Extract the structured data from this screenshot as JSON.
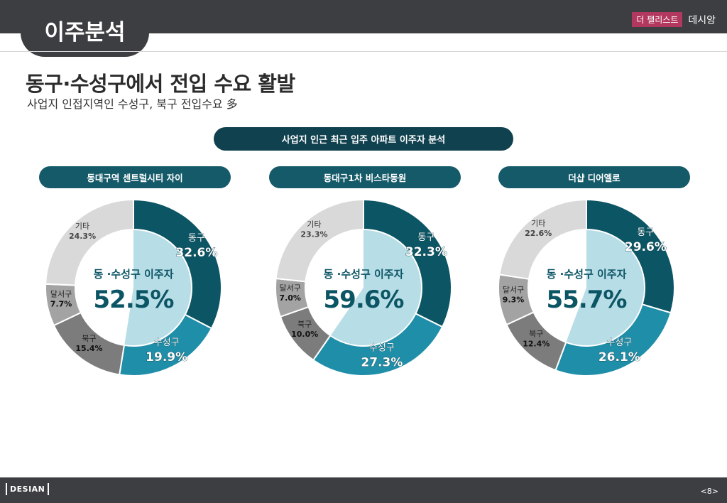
{
  "header": {
    "tab_title": "이주분석",
    "brand_badge": "더 팰리스트",
    "brand_name": "데시앙"
  },
  "headline": "동구·수성구에서 전입 수요 활발",
  "subline": "사업지 인접지역인 수성구, 북구 전입수요 多",
  "section_title": "사업지 인근 최근 입주 아파트 이주자 분석",
  "center_label": "동 ·수성구 이주자",
  "colors": {
    "dong": "#0c5565",
    "suseong": "#1f8ea8",
    "buk": "#7c7c7c",
    "dalseo": "#a3a3a3",
    "other": "#d9d9d9",
    "inner_highlight": "#b7dde6",
    "center_text": "#0c5565"
  },
  "footer": {
    "logo": "DESIAN",
    "page": "<8>"
  },
  "chart_data": [
    {
      "type": "pie",
      "title": "동대구역 센트럴시티 자이",
      "center_value": "52.5%",
      "highlight_share": 52.5,
      "labels": [
        "동구",
        "수성구",
        "북구",
        "달서구",
        "기타"
      ],
      "values": [
        32.6,
        19.9,
        15.4,
        7.7,
        24.3
      ],
      "value_labels": [
        "32.6%",
        "19.9%",
        "15.4%",
        "7.7%",
        "24.3%"
      ]
    },
    {
      "type": "pie",
      "title": "동대구1차 비스타동원",
      "center_value": "59.6%",
      "highlight_share": 59.6,
      "labels": [
        "동구",
        "수성구",
        "북구",
        "달서구",
        "기타"
      ],
      "values": [
        32.3,
        27.3,
        10.0,
        7.0,
        23.3
      ],
      "value_labels": [
        "32.3%",
        "27.3%",
        "10.0%",
        "7.0%",
        "23.3%"
      ]
    },
    {
      "type": "pie",
      "title": "더샵 디어엘로",
      "center_value": "55.7%",
      "highlight_share": 55.7,
      "labels": [
        "동구",
        "수성구",
        "북구",
        "달서구",
        "기타"
      ],
      "values": [
        29.6,
        26.1,
        12.4,
        9.3,
        22.6
      ],
      "value_labels": [
        "29.6%",
        "26.1%",
        "12.4%",
        "9.3%",
        "22.6%"
      ]
    }
  ]
}
